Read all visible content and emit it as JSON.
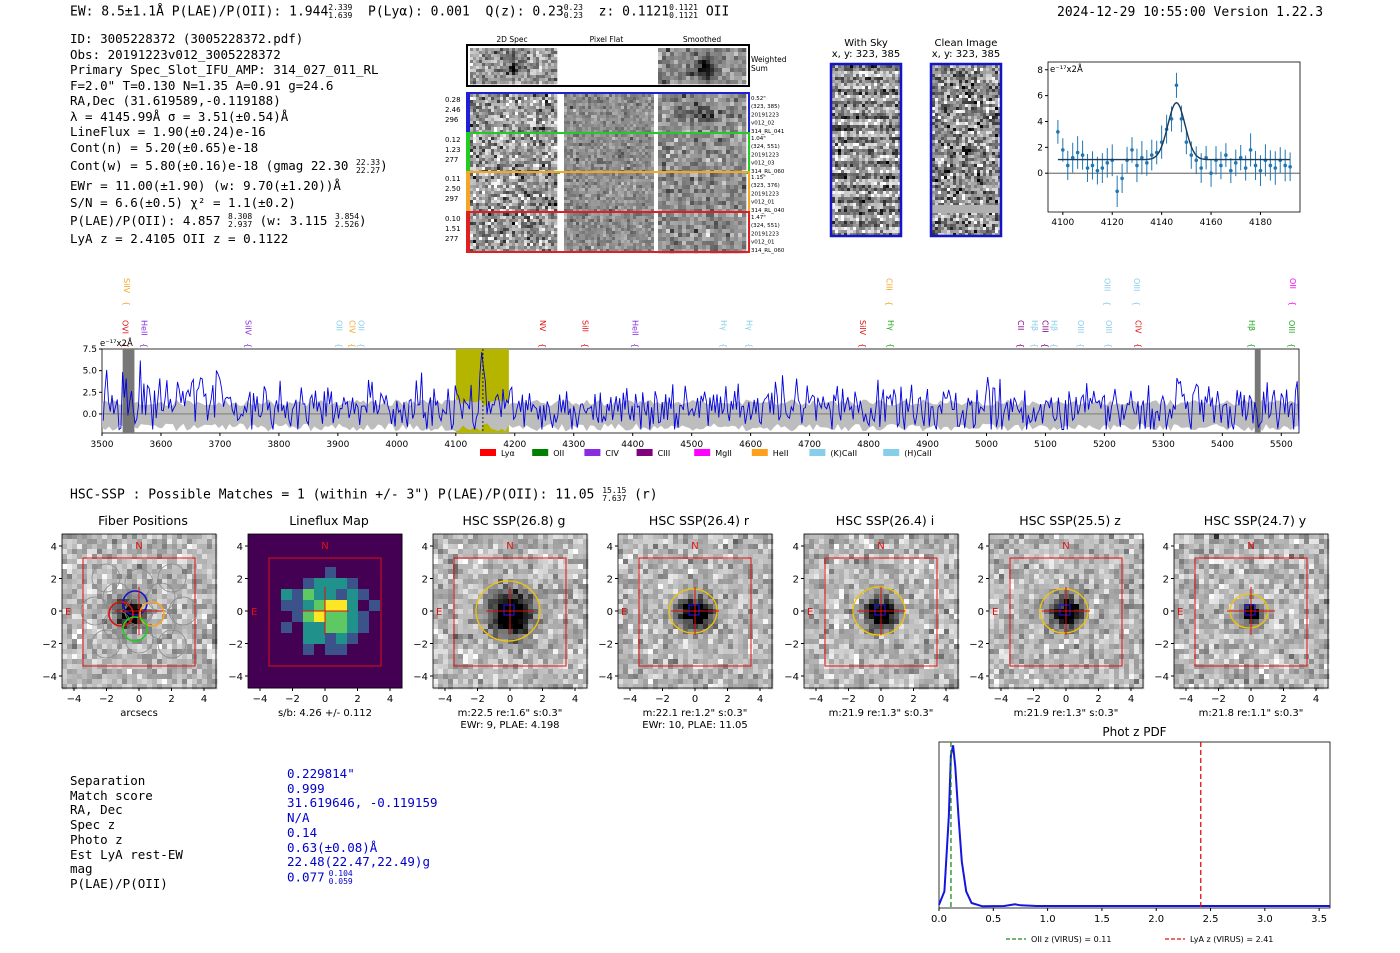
{
  "header": {
    "left": "EW: 8.5±1.1Å  P(LAE)/P(OII): 1.944",
    "left_sup": "2.339",
    "left_sub": "1.639",
    "plya": "P(Lyα): 0.001",
    "qz": "Q(z): 0.23",
    "qz_sup": "0.23",
    "qz_sub": "0.23",
    "z": "z: 0.1121",
    "z_sup": "0.1121",
    "z_sub": "0.1121",
    "z_line": "OII",
    "right": "2024-12-29 10:55:00  Version 1.22.3"
  },
  "info": {
    "lines": [
      "ID: 3005228372 (3005228372.pdf)",
      "Obs: 20191223v012_3005228372",
      "Primary Spec_Slot_IFU_AMP: 314_027_011_RL",
      "F=2.0\"  T=0.130  N=1.35  A=0.91  g=24.6",
      "RA,Dec (31.619589,-0.119188)",
      "λ = 4145.99Å  σ = 3.51(±0.54)Å",
      "LineFlux = 1.90(±0.24)e-16",
      "Cont(n) = 5.20(±0.65)e-18"
    ],
    "contw": "Cont(w) = 5.80(±0.16)e-18 (gmag 22.30",
    "contw_sup": "22.33",
    "contw_sub": "22.27",
    "ewr": "EWr = 11.00(±1.90) (w: 9.70(±1.20))Å",
    "sn": "S/N = 6.6(±0.5)  χ² = 1.1(±0.2)",
    "plae": "P(LAE)/P(OII): 4.857",
    "plae_sup": "8.308",
    "plae_sub": "2.937",
    "plae_w": "(w: 3.115",
    "plae_w_sup": "3.854",
    "plae_w_sub": "2.526",
    "lyaz": "LyA z = 2.4105  OII z = 0.1122"
  },
  "cutouts": {
    "col_titles": [
      "2D Spec",
      "Pixel Flat",
      "Smoothed"
    ],
    "weighted_sum": "Weighted Sum",
    "rows": [
      {
        "left": [
          "0.28",
          "2.46",
          "296"
        ],
        "right": [
          "0.52\"",
          "(323, 385)",
          "20191223",
          "v012_02",
          "314_RL_041"
        ],
        "color": "#1f1fd6"
      },
      {
        "left": [
          "0.12",
          "1.23",
          "277"
        ],
        "right": [
          "1.04\"",
          "(324, 551)",
          "20191223",
          "v012_03",
          "314_RL_060"
        ],
        "color": "#22cc22"
      },
      {
        "left": [
          "0.11",
          "2.50",
          "297"
        ],
        "right": [
          "1.15\"",
          "(323, 376)",
          "20191223",
          "v012_01",
          "314_RL_040"
        ],
        "color": "#f5a623"
      },
      {
        "left": [
          "0.10",
          "1.51",
          "277"
        ],
        "right": [
          "1.47\"",
          "(324, 551)",
          "20191223",
          "v012_01",
          "314_RL_060"
        ],
        "color": "#e02020"
      }
    ],
    "with_sky_title": "With Sky",
    "with_sky_coords": "x, y: 323, 385",
    "clean_title": "Clean Image",
    "clean_coords": "x, y: 323, 385"
  },
  "line_fit": {
    "ylabel": "e⁻¹⁷x2Å",
    "x_ticks": [
      4100,
      4120,
      4140,
      4160,
      4180
    ],
    "y_ticks": [
      0,
      2,
      4,
      6,
      8
    ],
    "xlim": [
      4094,
      4196
    ],
    "ylim": [
      -3,
      8.6
    ],
    "points": [
      [
        4098,
        3.2
      ],
      [
        4100,
        1.8
      ],
      [
        4102,
        0.6
      ],
      [
        4104,
        1.2
      ],
      [
        4106,
        1.6
      ],
      [
        4108,
        1.4
      ],
      [
        4110,
        0.4
      ],
      [
        4112,
        0.6
      ],
      [
        4114,
        0.2
      ],
      [
        4116,
        0.4
      ],
      [
        4118,
        0.8
      ],
      [
        4120,
        1.0
      ],
      [
        4122,
        -1.4
      ],
      [
        4124,
        -0.4
      ],
      [
        4126,
        1.0
      ],
      [
        4128,
        1.8
      ],
      [
        4130,
        0.6
      ],
      [
        4132,
        1.2
      ],
      [
        4134,
        0.8
      ],
      [
        4136,
        1.4
      ],
      [
        4138,
        1.6
      ],
      [
        4140,
        2.4
      ],
      [
        4142,
        3.4
      ],
      [
        4144,
        4.2
      ],
      [
        4146,
        6.8
      ],
      [
        4148,
        4.2
      ],
      [
        4150,
        2.4
      ],
      [
        4152,
        1.4
      ],
      [
        4154,
        1.0
      ],
      [
        4156,
        0.4
      ],
      [
        4158,
        1.2
      ],
      [
        4160,
        0.0
      ],
      [
        4162,
        1.0
      ],
      [
        4164,
        0.6
      ],
      [
        4166,
        1.4
      ],
      [
        4168,
        0.2
      ],
      [
        4170,
        0.8
      ],
      [
        4172,
        1.2
      ],
      [
        4174,
        0.4
      ],
      [
        4176,
        1.8
      ],
      [
        4178,
        0.6
      ],
      [
        4180,
        0.2
      ],
      [
        4182,
        1.0
      ],
      [
        4184,
        0.6
      ],
      [
        4186,
        0.4
      ],
      [
        4188,
        1.0
      ],
      [
        4190,
        0.6
      ],
      [
        4192,
        0.5
      ]
    ],
    "fit": {
      "center": 4146.0,
      "sigma": 3.5,
      "amp": 4.4,
      "cont": 1.05
    }
  },
  "full_spectrum": {
    "ylabel": "e⁻¹⁷x2Å",
    "x_ticks": [
      3500,
      3600,
      3700,
      3800,
      3900,
      4000,
      4100,
      4200,
      4300,
      4400,
      4500,
      4600,
      4700,
      4800,
      4900,
      5000,
      5100,
      5200,
      5300,
      5400,
      5500
    ],
    "y_ticks": [
      0.0,
      2.5,
      5.0,
      7.5
    ],
    "xlim": [
      3500,
      5530
    ],
    "ylim": [
      -2.2,
      7.5
    ],
    "highlight": [
      4100,
      4190
    ],
    "line_center": 4146,
    "masked": [
      3535,
      3555
    ],
    "masked2": [
      5455,
      5465
    ],
    "line_labels": [
      {
        "label": "OVI",
        "x": 3530,
        "row": 2,
        "color": "#e01010"
      },
      {
        "label": "SiIV",
        "x": 3532,
        "row": 0,
        "color": "#f5a623"
      },
      {
        "label": "HeII",
        "x": 3562,
        "row": 2,
        "color": "#8a2be2"
      },
      {
        "label": "SiIV",
        "x": 3738,
        "row": 2,
        "color": "#8a2be2"
      },
      {
        "label": "OII",
        "x": 3893,
        "row": 2,
        "color": "#87ceeb"
      },
      {
        "label": "CIV",
        "x": 3915,
        "row": 2,
        "color": "#f5a623"
      },
      {
        "label": "OII",
        "x": 3930,
        "row": 2,
        "color": "#87ceeb"
      },
      {
        "label": "NV",
        "x": 4238,
        "row": 2,
        "color": "#e01010"
      },
      {
        "label": "SiII",
        "x": 4310,
        "row": 2,
        "color": "#e01010"
      },
      {
        "label": "HeII",
        "x": 4395,
        "row": 2,
        "color": "#8a2be2"
      },
      {
        "label": "Hγ",
        "x": 4545,
        "row": 2,
        "color": "#87ceeb"
      },
      {
        "label": "Hγ",
        "x": 4588,
        "row": 2,
        "color": "#87ceeb"
      },
      {
        "label": "SiIV",
        "x": 4780,
        "row": 2,
        "color": "#e01010"
      },
      {
        "label": "CIII",
        "x": 4825,
        "row": 0,
        "color": "#f5a623"
      },
      {
        "label": "Hγ",
        "x": 4828,
        "row": 2,
        "color": "#22aa22"
      },
      {
        "label": "CII",
        "x": 5048,
        "row": 2,
        "color": "#800080"
      },
      {
        "label": "Hβ",
        "x": 5072,
        "row": 2,
        "color": "#87ceeb"
      },
      {
        "label": "CIII",
        "x": 5090,
        "row": 2,
        "color": "#800080"
      },
      {
        "label": "Hβ",
        "x": 5105,
        "row": 2,
        "color": "#87ceeb"
      },
      {
        "label": "OIII",
        "x": 5150,
        "row": 2,
        "color": "#87ceeb"
      },
      {
        "label": "OIII",
        "x": 5195,
        "row": 0,
        "color": "#87ceeb"
      },
      {
        "label": "OIII",
        "x": 5198,
        "row": 2,
        "color": "#87ceeb"
      },
      {
        "label": "OIII",
        "x": 5245,
        "row": 0,
        "color": "#87ceeb"
      },
      {
        "label": "CIV",
        "x": 5248,
        "row": 2,
        "color": "#e01010"
      },
      {
        "label": "Hβ",
        "x": 5440,
        "row": 2,
        "color": "#22aa22"
      },
      {
        "label": "OII",
        "x": 5510,
        "row": 0,
        "color": "#ff00ff"
      },
      {
        "label": "OIII",
        "x": 5508,
        "row": 2,
        "color": "#22aa22"
      }
    ],
    "legend": [
      {
        "label": "Lyα",
        "color": "#ff0000"
      },
      {
        "label": "OII",
        "color": "#008000"
      },
      {
        "label": "CIV",
        "color": "#8a2be2"
      },
      {
        "label": "CIII",
        "color": "#800080"
      },
      {
        "label": "MgII",
        "color": "#ff00ff"
      },
      {
        "label": "HeII",
        "color": "#ff9f1c"
      },
      {
        "label": "(K)CaII",
        "color": "#87ceeb"
      },
      {
        "label": "(H)CaII",
        "color": "#87ceeb"
      }
    ]
  },
  "hsc": {
    "title": "HSC-SSP : Possible Matches = 1 (within +/- 3\")  P(LAE)/P(OII): 11.05",
    "title_sup": "15.15",
    "title_sub": "7.637",
    "title_end": "(r)",
    "ticks": [
      "4",
      "2",
      "0",
      "−2",
      "−4"
    ],
    "xticks": [
      "−4",
      "−2",
      "0",
      "2",
      "4"
    ],
    "panels": [
      {
        "title": "Fiber Positions",
        "caption1": "arcsecs",
        "caption2": ""
      },
      {
        "title": "Lineflux Map",
        "caption1": "s/b: 4.26 +/- 0.112",
        "caption2": ""
      },
      {
        "title": "HSC SSP(26.8) g",
        "caption1": "m:22.5  re:1.6\"  s:0.3\"",
        "caption2": "EWr: 9, PLAE: 4.198"
      },
      {
        "title": "HSC SSP(26.4) r",
        "caption1": "m:22.1  re:1.2\"  s:0.3\"",
        "caption2": "EWr: 10, PLAE: 11.05"
      },
      {
        "title": "HSC SSP(26.4) i",
        "caption1": "m:21.9  re:1.3\"  s:0.3\"",
        "caption2": ""
      },
      {
        "title": "HSC SSP(25.5) z",
        "caption1": "m:21.9  re:1.3\"  s:0.3\"",
        "caption2": ""
      },
      {
        "title": "HSC SSP(24.7) y",
        "caption1": "m:21.8  re:1.1\"  s:0.3\"",
        "caption2": ""
      }
    ],
    "north": "N",
    "east": "E"
  },
  "match": {
    "labels": [
      "Separation",
      "Match score",
      "RA, Dec",
      "Spec z",
      "Photo z",
      "Est LyA rest-EW",
      "mag",
      "P(LAE)/P(OII)"
    ],
    "values": [
      "0.229814\"",
      "0.999",
      "31.619646, -0.119159",
      "N/A",
      "0.14",
      "0.63(±0.08)Å",
      "22.48(22.47,22.49)g",
      "0.077"
    ],
    "plae_sup": "0.104",
    "plae_sub": "0.059"
  },
  "photz": {
    "title": "Phot z PDF",
    "x_ticks": [
      0.0,
      0.5,
      1.0,
      1.5,
      2.0,
      2.5,
      3.0,
      3.5
    ],
    "xlim": [
      0,
      3.6
    ],
    "curve": [
      [
        0.0,
        0.02
      ],
      [
        0.05,
        0.1
      ],
      [
        0.09,
        0.55
      ],
      [
        0.11,
        0.92
      ],
      [
        0.13,
        0.98
      ],
      [
        0.15,
        0.85
      ],
      [
        0.18,
        0.55
      ],
      [
        0.21,
        0.28
      ],
      [
        0.25,
        0.1
      ],
      [
        0.3,
        0.03
      ],
      [
        0.4,
        0.01
      ],
      [
        0.6,
        0.012
      ],
      [
        0.7,
        0.022
      ],
      [
        0.75,
        0.016
      ],
      [
        0.9,
        0.012
      ],
      [
        1.5,
        0.012
      ],
      [
        2.5,
        0.012
      ],
      [
        3.6,
        0.012
      ]
    ],
    "oii_z": 0.11,
    "lya_z": 2.41,
    "legend_oii": "OII z (VIRUS) = 0.11",
    "legend_lya": "LyA z (VIRUS) = 2.41"
  }
}
